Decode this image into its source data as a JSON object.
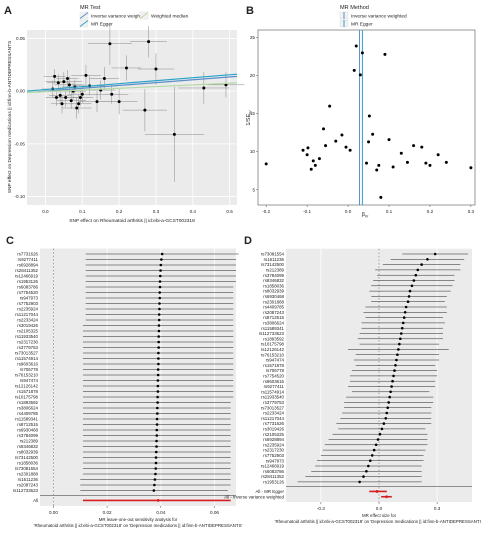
{
  "chart_data": [
    {
      "panel": "A",
      "type": "scatter",
      "legend_title": "MR Test",
      "legend_placement": "top",
      "xlabel": "SNP effect on Rheumatoid arthritis || id:ebi-a-GCST002318",
      "ylabel": "SNP effect on Depression medications || id:finn-b-ANTIDEPRESSANTS",
      "xlim": [
        -0.05,
        0.52
      ],
      "ylim": [
        -0.108,
        0.058
      ],
      "xticks": [
        "0.0",
        "0.1",
        "0.2",
        "0.3",
        "0.4",
        "0.5"
      ],
      "yticks": [
        "-0.10",
        "-0.05",
        "0.00",
        "0.05"
      ],
      "grid": true,
      "series": [
        {
          "name": "Inverse variance weighted",
          "color": "#5b8fc9",
          "intercept": 0.0,
          "slope": 0.027
        },
        {
          "name": "MR Egger",
          "color": "#2ba3c8",
          "intercept": 0.0015,
          "slope": 0.028
        },
        {
          "name": "Weighted median",
          "color": "#b7d9a6",
          "intercept": -0.0005,
          "slope": 0.016
        }
      ],
      "points": [
        {
          "x": 0.05,
          "y": 0.009,
          "ex": 0.05,
          "ey": 0.009
        },
        {
          "x": 0.065,
          "y": 0.006,
          "ex": 0.04,
          "ey": 0.008
        },
        {
          "x": 0.08,
          "y": 0.004,
          "ex": 0.035,
          "ey": 0.007
        },
        {
          "x": 0.03,
          "y": -0.006,
          "ex": 0.03,
          "ey": 0.008
        },
        {
          "x": 0.02,
          "y": 0.002,
          "ex": 0.03,
          "ey": 0.008
        },
        {
          "x": 0.04,
          "y": -0.004,
          "ex": 0.03,
          "ey": 0.008
        },
        {
          "x": 0.055,
          "y": -0.006,
          "ex": 0.035,
          "ey": 0.009
        },
        {
          "x": 0.07,
          "y": -0.009,
          "ex": 0.04,
          "ey": 0.008
        },
        {
          "x": 0.09,
          "y": -0.012,
          "ex": 0.035,
          "ey": 0.009
        },
        {
          "x": 0.1,
          "y": -0.003,
          "ex": 0.04,
          "ey": 0.008
        },
        {
          "x": 0.12,
          "y": 0.005,
          "ex": 0.04,
          "ey": 0.009
        },
        {
          "x": 0.14,
          "y": -0.01,
          "ex": 0.05,
          "ey": 0.01
        },
        {
          "x": 0.16,
          "y": 0.012,
          "ex": 0.04,
          "ey": 0.011
        },
        {
          "x": 0.18,
          "y": -0.003,
          "ex": 0.045,
          "ey": 0.009
        },
        {
          "x": 0.2,
          "y": -0.01,
          "ex": 0.05,
          "ey": 0.012
        },
        {
          "x": 0.22,
          "y": 0.022,
          "ex": 0.04,
          "ey": 0.012
        },
        {
          "x": 0.27,
          "y": -0.018,
          "ex": 0.06,
          "ey": 0.02
        },
        {
          "x": 0.3,
          "y": 0.021,
          "ex": 0.05,
          "ey": 0.015
        },
        {
          "x": 0.35,
          "y": -0.041,
          "ex": 0.08,
          "ey": 0.045
        },
        {
          "x": 0.175,
          "y": 0.045,
          "ex": 0.06,
          "ey": 0.02
        },
        {
          "x": 0.28,
          "y": 0.047,
          "ex": 0.05,
          "ey": 0.015
        },
        {
          "x": 0.43,
          "y": 0.003,
          "ex": 0.07,
          "ey": 0.015
        },
        {
          "x": 0.49,
          "y": 0.006,
          "ex": 0.05,
          "ey": 0.012
        },
        {
          "x": 0.11,
          "y": 0.015,
          "ex": 0.04,
          "ey": 0.01
        },
        {
          "x": 0.06,
          "y": 0.012,
          "ex": 0.03,
          "ey": 0.008
        },
        {
          "x": 0.035,
          "y": 0.008,
          "ex": 0.03,
          "ey": 0.008
        },
        {
          "x": 0.045,
          "y": -0.012,
          "ex": 0.03,
          "ey": 0.009
        },
        {
          "x": 0.085,
          "y": -0.016,
          "ex": 0.04,
          "ey": 0.01
        },
        {
          "x": 0.075,
          "y": 0.0,
          "ex": 0.035,
          "ey": 0.008
        },
        {
          "x": 0.15,
          "y": 0.001,
          "ex": 0.04,
          "ey": 0.009
        },
        {
          "x": 0.025,
          "y": 0.014,
          "ex": 0.03,
          "ey": 0.007
        },
        {
          "x": 0.095,
          "y": -0.006,
          "ex": 0.035,
          "ey": 0.008
        }
      ]
    },
    {
      "panel": "B",
      "type": "scatter",
      "legend_title": "MR Method",
      "legend_placement": "top",
      "xlabel": "β_IV",
      "ylabel": "1/SE_IV",
      "xlim": [
        -0.22,
        0.31
      ],
      "ylim": [
        3,
        26
      ],
      "xticks": [
        "-0.2",
        "-0.1",
        "0.0",
        "0.1",
        "0.2",
        "0.3"
      ],
      "yticks": [
        "5",
        "10",
        "15",
        "20",
        "25"
      ],
      "grid": false,
      "vlines": [
        {
          "name": "Inverse variance weighted",
          "x": 0.028,
          "color": "#5b8fc9"
        },
        {
          "name": "MR Egger",
          "x": 0.035,
          "color": "#2ba3c8"
        }
      ],
      "points": [
        {
          "x": -0.2,
          "y": 8.4
        },
        {
          "x": -0.11,
          "y": 10.2
        },
        {
          "x": -0.1,
          "y": 9.6
        },
        {
          "x": -0.098,
          "y": 10.5
        },
        {
          "x": -0.09,
          "y": 7.7
        },
        {
          "x": -0.085,
          "y": 8.8
        },
        {
          "x": -0.08,
          "y": 8.2
        },
        {
          "x": -0.07,
          "y": 9.1
        },
        {
          "x": -0.06,
          "y": 13.0
        },
        {
          "x": -0.055,
          "y": 10.8
        },
        {
          "x": -0.045,
          "y": 16.0
        },
        {
          "x": -0.03,
          "y": 11.4
        },
        {
          "x": -0.015,
          "y": 12.2
        },
        {
          "x": -0.005,
          "y": 10.6
        },
        {
          "x": 0.005,
          "y": 10.2
        },
        {
          "x": 0.015,
          "y": 20.7
        },
        {
          "x": 0.02,
          "y": 23.9
        },
        {
          "x": 0.03,
          "y": 20.1
        },
        {
          "x": 0.035,
          "y": 23.0
        },
        {
          "x": 0.045,
          "y": 8.5
        },
        {
          "x": 0.05,
          "y": 11.3
        },
        {
          "x": 0.052,
          "y": 14.7
        },
        {
          "x": 0.06,
          "y": 12.3
        },
        {
          "x": 0.07,
          "y": 7.6
        },
        {
          "x": 0.075,
          "y": 8.2
        },
        {
          "x": 0.08,
          "y": 4.0
        },
        {
          "x": 0.09,
          "y": 22.8
        },
        {
          "x": 0.1,
          "y": 11.6
        },
        {
          "x": 0.11,
          "y": 8.0
        },
        {
          "x": 0.13,
          "y": 9.8
        },
        {
          "x": 0.145,
          "y": 8.6
        },
        {
          "x": 0.16,
          "y": 10.8
        },
        {
          "x": 0.18,
          "y": 10.6
        },
        {
          "x": 0.19,
          "y": 8.5
        },
        {
          "x": 0.2,
          "y": 8.2
        },
        {
          "x": 0.22,
          "y": 9.6
        },
        {
          "x": 0.24,
          "y": 8.6
        },
        {
          "x": 0.3,
          "y": 7.9
        }
      ]
    },
    {
      "panel": "C",
      "type": "forest",
      "xlabel": "MR leave-one-out sensitivity analysis for\n'Rheumatoid arthritis || id:ebi-a-GCST002318' on 'Depression medications || id:finn-b-ANTIDEPRESSANTS'",
      "xlim": [
        -0.005,
        0.068
      ],
      "xticks": [
        "0.00",
        "0.02",
        "0.04",
        "0.06"
      ],
      "ref_line": 0,
      "summary": {
        "label": "All",
        "value": 0.039,
        "lo": 0.011,
        "hi": 0.066,
        "color": "#d61f1f"
      },
      "rows": [
        {
          "label": "rs7731626",
          "value": 0.0405,
          "lo": 0.012,
          "hi": 0.069
        },
        {
          "label": "rs9277411",
          "value": 0.0402,
          "lo": 0.012,
          "hi": 0.068
        },
        {
          "label": "rs6928894",
          "value": 0.04,
          "lo": 0.012,
          "hi": 0.068
        },
        {
          "label": "rs28411352",
          "value": 0.0399,
          "lo": 0.012,
          "hi": 0.068
        },
        {
          "label": "rs12466919",
          "value": 0.0398,
          "lo": 0.012,
          "hi": 0.068
        },
        {
          "label": "rs1953126",
          "value": 0.0397,
          "lo": 0.012,
          "hi": 0.068
        },
        {
          "label": "rs6083786",
          "value": 0.0397,
          "lo": 0.012,
          "hi": 0.067
        },
        {
          "label": "rs7754520",
          "value": 0.0396,
          "lo": 0.012,
          "hi": 0.067
        },
        {
          "label": "rs947973",
          "value": 0.0396,
          "lo": 0.012,
          "hi": 0.067
        },
        {
          "label": "rs7752903",
          "value": 0.0395,
          "lo": 0.012,
          "hi": 0.067
        },
        {
          "label": "rs2235924",
          "value": 0.0395,
          "lo": 0.012,
          "hi": 0.067
        },
        {
          "label": "rs11217044",
          "value": 0.0394,
          "lo": 0.012,
          "hi": 0.067
        },
        {
          "label": "rs2233424",
          "value": 0.0394,
          "lo": 0.012,
          "hi": 0.067
        },
        {
          "label": "rs3019426",
          "value": 0.0393,
          "lo": 0.011,
          "hi": 0.067
        },
        {
          "label": "rs2105325",
          "value": 0.0393,
          "lo": 0.011,
          "hi": 0.067
        },
        {
          "label": "rs11933540",
          "value": 0.0392,
          "lo": 0.011,
          "hi": 0.067
        },
        {
          "label": "rs2317230",
          "value": 0.0392,
          "lo": 0.011,
          "hi": 0.067
        },
        {
          "label": "rs3779753",
          "value": 0.0392,
          "lo": 0.011,
          "hi": 0.067
        },
        {
          "label": "rs73013527",
          "value": 0.0391,
          "lo": 0.011,
          "hi": 0.067
        },
        {
          "label": "rs11574914",
          "value": 0.0391,
          "lo": 0.011,
          "hi": 0.067
        },
        {
          "label": "rs9603616",
          "value": 0.0391,
          "lo": 0.011,
          "hi": 0.067
        },
        {
          "label": "rs706778",
          "value": 0.039,
          "lo": 0.011,
          "hi": 0.067
        },
        {
          "label": "rs76153210",
          "value": 0.039,
          "lo": 0.011,
          "hi": 0.067
        },
        {
          "label": "rs947474",
          "value": 0.0389,
          "lo": 0.011,
          "hi": 0.067
        },
        {
          "label": "rs12126142",
          "value": 0.0389,
          "lo": 0.011,
          "hi": 0.067
        },
        {
          "label": "rs1571878",
          "value": 0.0389,
          "lo": 0.011,
          "hi": 0.067
        },
        {
          "label": "rs10175798",
          "value": 0.0388,
          "lo": 0.011,
          "hi": 0.067
        },
        {
          "label": "rs1893592",
          "value": 0.0388,
          "lo": 0.011,
          "hi": 0.066
        },
        {
          "label": "rs3806624",
          "value": 0.0387,
          "lo": 0.011,
          "hi": 0.066
        },
        {
          "label": "rs4409785",
          "value": 0.0387,
          "lo": 0.011,
          "hi": 0.066
        },
        {
          "label": "rs11589341",
          "value": 0.0386,
          "lo": 0.011,
          "hi": 0.066
        },
        {
          "label": "rs8712515",
          "value": 0.0386,
          "lo": 0.011,
          "hi": 0.066
        },
        {
          "label": "rs6930468",
          "value": 0.0385,
          "lo": 0.011,
          "hi": 0.066
        },
        {
          "label": "rs3784099",
          "value": 0.0385,
          "lo": 0.011,
          "hi": 0.066
        },
        {
          "label": "rs212389",
          "value": 0.0384,
          "lo": 0.011,
          "hi": 0.066
        },
        {
          "label": "rs9346832",
          "value": 0.0384,
          "lo": 0.011,
          "hi": 0.066
        },
        {
          "label": "rs8032939",
          "value": 0.0383,
          "lo": 0.011,
          "hi": 0.066
        },
        {
          "label": "rs73142500",
          "value": 0.0382,
          "lo": 0.011,
          "hi": 0.066
        },
        {
          "label": "rs1858036",
          "value": 0.0382,
          "lo": 0.011,
          "hi": 0.066
        },
        {
          "label": "rs73081554",
          "value": 0.0381,
          "lo": 0.011,
          "hi": 0.066
        },
        {
          "label": "rs2301888",
          "value": 0.038,
          "lo": 0.011,
          "hi": 0.066
        },
        {
          "label": "rs1611236",
          "value": 0.0378,
          "lo": 0.01,
          "hi": 0.066
        },
        {
          "label": "rs2087243",
          "value": 0.0376,
          "lo": 0.01,
          "hi": 0.066
        },
        {
          "label": "rs112733623",
          "value": 0.0374,
          "lo": 0.01,
          "hi": 0.065
        }
      ]
    },
    {
      "panel": "D",
      "type": "forest",
      "xlabel": "MR effect size for\n'Rheumatoid arthritis || id:ebi-a-GCST002318' on 'Depression medications || id:finn-b-ANTIDEPRESSANTS'",
      "xlim": [
        -0.48,
        0.48
      ],
      "xticks": [
        "-0.3",
        "0.0",
        "0.3"
      ],
      "ref_line": 0,
      "summary": [
        {
          "label": "All - MR Egger",
          "value": -0.01,
          "lo": -0.05,
          "hi": 0.04,
          "color": "#d61f1f"
        },
        {
          "label": "All - Inverse variance weighted",
          "value": 0.039,
          "lo": 0.011,
          "hi": 0.066,
          "color": "#d61f1f"
        }
      ],
      "rows": [
        {
          "label": "rs73081554",
          "value": 0.29,
          "lo": 0.12,
          "hi": 0.46
        },
        {
          "label": "rs1611236",
          "value": 0.25,
          "lo": 0.06,
          "hi": 0.44
        },
        {
          "label": "rs73142500",
          "value": 0.22,
          "lo": 0.02,
          "hi": 0.42
        },
        {
          "label": "rs212389",
          "value": 0.2,
          "lo": -0.02,
          "hi": 0.42
        },
        {
          "label": "rs3784099",
          "value": 0.19,
          "lo": -0.01,
          "hi": 0.39
        },
        {
          "label": "rs9346832",
          "value": 0.18,
          "lo": -0.03,
          "hi": 0.39
        },
        {
          "label": "rs1858036",
          "value": 0.17,
          "lo": -0.04,
          "hi": 0.38
        },
        {
          "label": "rs8032939",
          "value": 0.16,
          "lo": -0.05,
          "hi": 0.37
        },
        {
          "label": "rs6930468",
          "value": 0.155,
          "lo": -0.04,
          "hi": 0.35
        },
        {
          "label": "rs2301888",
          "value": 0.15,
          "lo": -0.04,
          "hi": 0.34
        },
        {
          "label": "rs4409785",
          "value": 0.14,
          "lo": -0.07,
          "hi": 0.35
        },
        {
          "label": "rs2087243",
          "value": 0.135,
          "lo": -0.08,
          "hi": 0.35
        },
        {
          "label": "rs8712515",
          "value": 0.13,
          "lo": -0.07,
          "hi": 0.33
        },
        {
          "label": "rs3806624",
          "value": 0.125,
          "lo": -0.09,
          "hi": 0.34
        },
        {
          "label": "rs11589341",
          "value": 0.12,
          "lo": -0.09,
          "hi": 0.33
        },
        {
          "label": "rs112733623",
          "value": 0.115,
          "lo": -0.1,
          "hi": 0.33
        },
        {
          "label": "rs1893592",
          "value": 0.11,
          "lo": -0.11,
          "hi": 0.33
        },
        {
          "label": "rs10175798",
          "value": 0.105,
          "lo": -0.1,
          "hi": 0.31
        },
        {
          "label": "rs12126142",
          "value": 0.1,
          "lo": -0.16,
          "hi": 0.36
        },
        {
          "label": "rs76153210",
          "value": 0.095,
          "lo": -0.12,
          "hi": 0.31
        },
        {
          "label": "rs947474",
          "value": 0.09,
          "lo": -0.13,
          "hi": 0.31
        },
        {
          "label": "rs1571878",
          "value": 0.085,
          "lo": -0.12,
          "hi": 0.29
        },
        {
          "label": "rs706778",
          "value": 0.08,
          "lo": -0.14,
          "hi": 0.3
        },
        {
          "label": "rs7754520",
          "value": 0.075,
          "lo": -0.15,
          "hi": 0.3
        },
        {
          "label": "rs9603616",
          "value": 0.07,
          "lo": -0.15,
          "hi": 0.29
        },
        {
          "label": "rs9277411",
          "value": 0.065,
          "lo": -0.16,
          "hi": 0.29
        },
        {
          "label": "rs11574914",
          "value": 0.06,
          "lo": -0.14,
          "hi": 0.26
        },
        {
          "label": "rs11933540",
          "value": 0.055,
          "lo": -0.17,
          "hi": 0.28
        },
        {
          "label": "rs3779753",
          "value": 0.05,
          "lo": -0.18,
          "hi": 0.28
        },
        {
          "label": "rs73013527",
          "value": 0.045,
          "lo": -0.18,
          "hi": 0.27
        },
        {
          "label": "rs2233424",
          "value": 0.04,
          "lo": -0.19,
          "hi": 0.27
        },
        {
          "label": "rs11217044",
          "value": 0.035,
          "lo": -0.2,
          "hi": 0.27
        },
        {
          "label": "rs7731626",
          "value": 0.025,
          "lo": -0.22,
          "hi": 0.27
        },
        {
          "label": "rs3019426",
          "value": 0.015,
          "lo": -0.21,
          "hi": 0.24
        },
        {
          "label": "rs2105325",
          "value": 0.005,
          "lo": -0.24,
          "hi": 0.25
        },
        {
          "label": "rs6928894",
          "value": -0.005,
          "lo": -0.26,
          "hi": 0.25
        },
        {
          "label": "rs2235924",
          "value": -0.015,
          "lo": -0.28,
          "hi": 0.25
        },
        {
          "label": "rs2317230",
          "value": -0.025,
          "lo": -0.29,
          "hi": 0.24
        },
        {
          "label": "rs7752903",
          "value": -0.035,
          "lo": -0.3,
          "hi": 0.23
        },
        {
          "label": "rs947973",
          "value": -0.045,
          "lo": -0.32,
          "hi": 0.23
        },
        {
          "label": "rs12466919",
          "value": -0.055,
          "lo": -0.33,
          "hi": 0.22
        },
        {
          "label": "rs6083786",
          "value": -0.065,
          "lo": -0.35,
          "hi": 0.22
        },
        {
          "label": "rs28411352",
          "value": -0.08,
          "lo": -0.38,
          "hi": 0.22
        },
        {
          "label": "rs1953126",
          "value": -0.1,
          "lo": -0.42,
          "hi": 0.22
        }
      ]
    }
  ]
}
